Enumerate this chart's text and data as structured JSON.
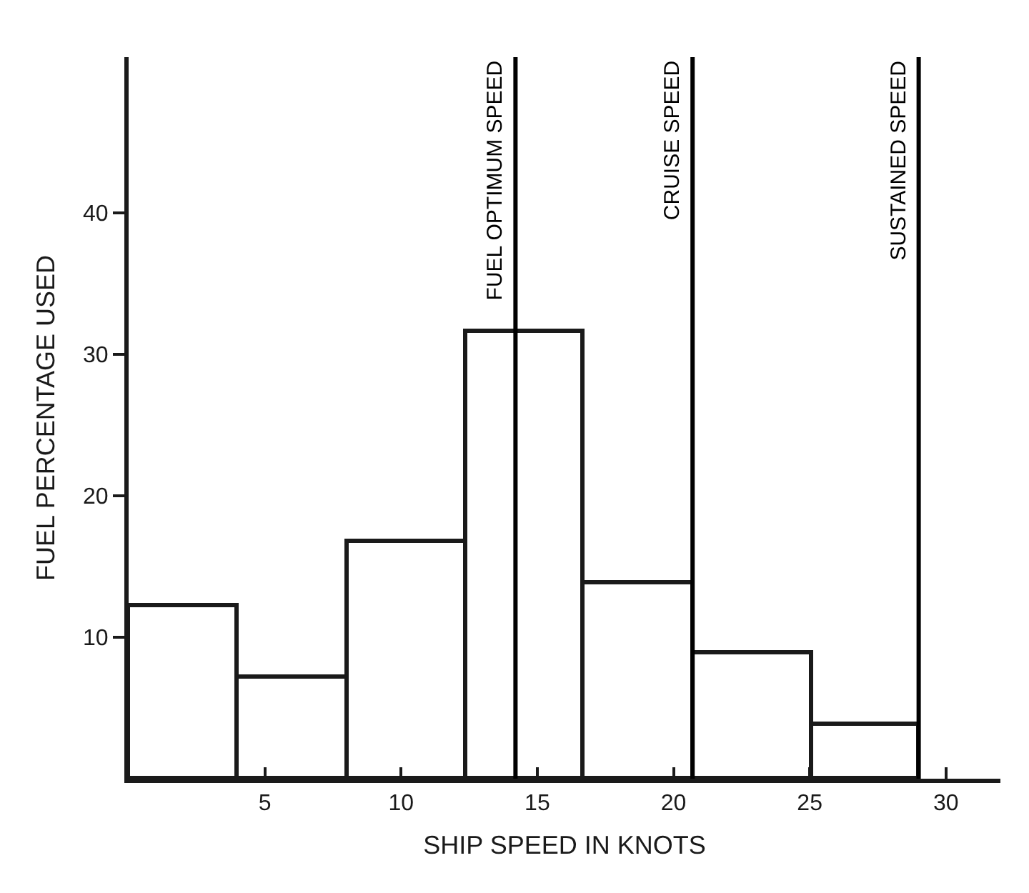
{
  "chart_data": {
    "type": "histogram",
    "xlabel": "SHIP SPEED IN KNOTS",
    "ylabel": "FUEL PERCENTAGE USED",
    "bins": [
      0,
      4,
      8,
      12.4,
      16.7,
      20.7,
      25.1,
      29
    ],
    "values": [
      12.2,
      7.2,
      16.8,
      31.6,
      13.8,
      8.9,
      3.8
    ],
    "color": "#ffffff",
    "xlim": [
      0,
      32
    ],
    "xticks": [
      5,
      10,
      15,
      20,
      25,
      30
    ],
    "ylim": [
      0,
      51
    ],
    "yticks": [
      10,
      20,
      30,
      40
    ],
    "ref_lines": [
      {
        "axis": "x",
        "value": 14.2,
        "label": "FUEL OPTIMUM SPEED",
        "color": "#000000"
      },
      {
        "axis": "x",
        "value": 20.7,
        "label": "CRUISE SPEED",
        "color": "#000000"
      },
      {
        "axis": "x",
        "value": 29,
        "label": "SUSTAINED SPEED",
        "color": "#000000"
      }
    ]
  }
}
